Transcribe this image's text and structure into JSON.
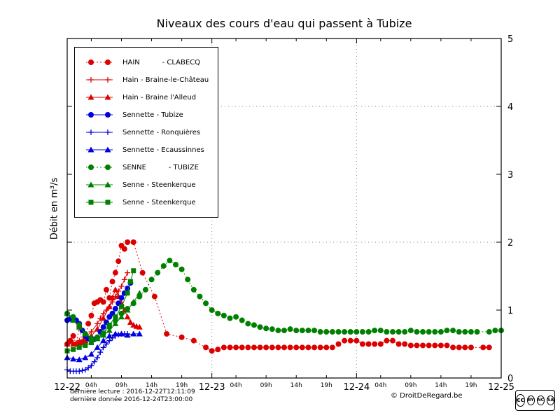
{
  "title": "Niveaux des cours d'eau qui passent à Tubize",
  "footer": {
    "last_read": "dernière lecture : 2016-12-22T12:11:09",
    "last_data": "dernière donnée  2016-12-24T23:00:00",
    "copyright": "© DroitDeRegard.be",
    "license": {
      "logo": "cc",
      "terms": [
        "BY",
        "NC",
        "SA"
      ]
    }
  },
  "chart_data": {
    "type": "line",
    "title": "Niveaux des cours d'eau qui passent à Tubize",
    "xlabel": "",
    "ylabel": "Débit en m³/s",
    "x_range_hours": [
      0,
      72
    ],
    "ylim": [
      0,
      5
    ],
    "grid": {
      "h_lines": [
        2,
        4
      ],
      "v_lines_t": [
        24,
        48
      ],
      "style": "dotted"
    },
    "legend_position": "upper left",
    "x_axis": {
      "day_ticks": [
        {
          "t": 0,
          "label": "12-22"
        },
        {
          "t": 24,
          "label": "12-23"
        },
        {
          "t": 48,
          "label": "12-24"
        },
        {
          "t": 72,
          "label": "12-25"
        }
      ],
      "hour_ticks": [
        {
          "t": 4,
          "label": "04h"
        },
        {
          "t": 9,
          "label": "09h"
        },
        {
          "t": 14,
          "label": "14h"
        },
        {
          "t": 19,
          "label": "19h"
        },
        {
          "t": 28,
          "label": "04h"
        },
        {
          "t": 33,
          "label": "09h"
        },
        {
          "t": 38,
          "label": "14h"
        },
        {
          "t": 43,
          "label": "19h"
        },
        {
          "t": 52,
          "label": "04h"
        },
        {
          "t": 57,
          "label": "09h"
        },
        {
          "t": 62,
          "label": "14h"
        },
        {
          "t": 67,
          "label": "19h"
        }
      ]
    },
    "y_axis": {
      "ticks": [
        0,
        1,
        2,
        3,
        4,
        5
      ],
      "side": "right"
    },
    "series": [
      {
        "id": "hain-clabecq",
        "name": "HAIN          - CLABECQ",
        "color": "#dd0000",
        "marker": "circle",
        "line": "dotted",
        "points": [
          [
            0,
            0.5
          ],
          [
            0.5,
            0.55
          ],
          [
            1,
            0.62
          ],
          [
            1.5,
            0.5
          ],
          [
            2,
            0.75
          ],
          [
            2.5,
            0.52
          ],
          [
            3,
            0.57
          ],
          [
            3.5,
            0.8
          ],
          [
            4,
            0.92
          ],
          [
            4.5,
            1.1
          ],
          [
            5,
            1.12
          ],
          [
            5.5,
            1.15
          ],
          [
            6,
            1.12
          ],
          [
            6.5,
            1.3
          ],
          [
            7,
            1.18
          ],
          [
            7.5,
            1.42
          ],
          [
            8,
            1.55
          ],
          [
            8.5,
            1.72
          ],
          [
            9,
            1.95
          ],
          [
            9.5,
            1.9
          ],
          [
            10,
            2.0
          ],
          [
            11,
            2.0
          ],
          [
            12.5,
            1.55
          ],
          [
            14.5,
            1.2
          ],
          [
            16.5,
            0.65
          ],
          [
            19,
            0.6
          ],
          [
            21,
            0.55
          ],
          [
            23,
            0.45
          ],
          [
            24,
            0.4
          ],
          [
            25,
            0.42
          ],
          [
            26,
            0.45
          ],
          [
            27,
            0.45
          ],
          [
            28,
            0.45
          ],
          [
            29,
            0.45
          ],
          [
            30,
            0.45
          ],
          [
            31,
            0.45
          ],
          [
            32,
            0.45
          ],
          [
            33,
            0.45
          ],
          [
            34,
            0.45
          ],
          [
            35,
            0.45
          ],
          [
            36,
            0.45
          ],
          [
            37,
            0.45
          ],
          [
            38,
            0.45
          ],
          [
            39,
            0.45
          ],
          [
            40,
            0.45
          ],
          [
            41,
            0.45
          ],
          [
            42,
            0.45
          ],
          [
            43,
            0.45
          ],
          [
            44,
            0.45
          ],
          [
            45,
            0.5
          ],
          [
            46,
            0.55
          ],
          [
            47,
            0.55
          ],
          [
            48,
            0.55
          ],
          [
            49,
            0.5
          ],
          [
            50,
            0.5
          ],
          [
            51,
            0.5
          ],
          [
            52,
            0.5
          ],
          [
            53,
            0.55
          ],
          [
            54,
            0.55
          ],
          [
            55,
            0.5
          ],
          [
            56,
            0.5
          ],
          [
            57,
            0.48
          ],
          [
            58,
            0.48
          ],
          [
            59,
            0.48
          ],
          [
            60,
            0.48
          ],
          [
            61,
            0.48
          ],
          [
            62,
            0.48
          ],
          [
            63,
            0.48
          ],
          [
            64,
            0.45
          ],
          [
            65,
            0.45
          ],
          [
            66,
            0.45
          ],
          [
            67,
            0.45
          ],
          [
            69,
            0.45
          ],
          [
            70,
            0.45
          ]
        ]
      },
      {
        "id": "hain-braine-le-chateau",
        "name": "Hain - Braine-le-Château",
        "color": "#dd0000",
        "marker": "plus",
        "line": "solid",
        "points": [
          [
            0,
            0.5
          ],
          [
            1,
            0.52
          ],
          [
            2,
            0.55
          ],
          [
            3,
            0.6
          ],
          [
            4,
            0.68
          ],
          [
            5,
            0.8
          ],
          [
            5.5,
            0.88
          ],
          [
            6,
            0.95
          ],
          [
            6.5,
            1.0
          ],
          [
            7,
            1.05
          ],
          [
            7.5,
            1.12
          ],
          [
            8,
            1.2
          ],
          [
            8.5,
            1.28
          ],
          [
            9,
            1.35
          ],
          [
            9.5,
            1.45
          ],
          [
            10,
            1.55
          ]
        ]
      },
      {
        "id": "hain-braine-l-alleud",
        "name": "Hain - Braine l'Alleud",
        "color": "#dd0000",
        "marker": "triangle",
        "line": "solid",
        "points": [
          [
            0,
            0.5
          ],
          [
            1,
            0.5
          ],
          [
            2,
            0.52
          ],
          [
            3,
            0.55
          ],
          [
            4,
            0.62
          ],
          [
            5,
            0.72
          ],
          [
            6,
            0.88
          ],
          [
            7,
            1.05
          ],
          [
            7.5,
            1.18
          ],
          [
            8,
            1.3
          ],
          [
            8.5,
            1.2
          ],
          [
            9,
            1.1
          ],
          [
            9.5,
            1.0
          ],
          [
            10,
            0.9
          ],
          [
            10.5,
            0.82
          ],
          [
            11,
            0.78
          ],
          [
            11.5,
            0.76
          ],
          [
            12,
            0.75
          ]
        ]
      },
      {
        "id": "sennette-tubize",
        "name": "Sennette - Tubize",
        "color": "#0000dd",
        "marker": "circle",
        "line": "solid",
        "points": [
          [
            0,
            0.85
          ],
          [
            0.5,
            0.87
          ],
          [
            1,
            0.88
          ],
          [
            1.5,
            0.85
          ],
          [
            2,
            0.8
          ],
          [
            2.5,
            0.7
          ],
          [
            3,
            0.62
          ],
          [
            3.5,
            0.58
          ],
          [
            4,
            0.55
          ],
          [
            4.5,
            0.57
          ],
          [
            5,
            0.6
          ],
          [
            5.5,
            0.68
          ],
          [
            6,
            0.75
          ],
          [
            6.5,
            0.82
          ],
          [
            7,
            0.9
          ],
          [
            7.5,
            0.95
          ],
          [
            8,
            1.02
          ],
          [
            8.5,
            1.1
          ],
          [
            9,
            1.18
          ],
          [
            9.5,
            1.25
          ],
          [
            10,
            1.32
          ],
          [
            10.5,
            1.4
          ]
        ]
      },
      {
        "id": "sennette-ronquieres",
        "name": "Sennette - Ronquières",
        "color": "#0000dd",
        "marker": "plus",
        "line": "solid",
        "points": [
          [
            0,
            0.12
          ],
          [
            0.5,
            0.1
          ],
          [
            1,
            0.1
          ],
          [
            1.5,
            0.1
          ],
          [
            2,
            0.1
          ],
          [
            2.5,
            0.11
          ],
          [
            3,
            0.12
          ],
          [
            3.5,
            0.15
          ],
          [
            4,
            0.18
          ],
          [
            4.5,
            0.24
          ],
          [
            5,
            0.3
          ],
          [
            5.5,
            0.38
          ],
          [
            6,
            0.45
          ],
          [
            6.5,
            0.5
          ],
          [
            7,
            0.55
          ],
          [
            7.5,
            0.59
          ],
          [
            8,
            0.62
          ],
          [
            8.5,
            0.64
          ],
          [
            9,
            0.65
          ],
          [
            9.5,
            0.65
          ],
          [
            10,
            0.65
          ]
        ]
      },
      {
        "id": "sennette-ecaussinnes",
        "name": "Sennette - Ecaussinnes",
        "color": "#0000dd",
        "marker": "triangle",
        "line": "solid",
        "points": [
          [
            0,
            0.3
          ],
          [
            1,
            0.28
          ],
          [
            2,
            0.27
          ],
          [
            3,
            0.3
          ],
          [
            4,
            0.35
          ],
          [
            5,
            0.45
          ],
          [
            6,
            0.55
          ],
          [
            7,
            0.62
          ],
          [
            8,
            0.65
          ],
          [
            9,
            0.65
          ],
          [
            10,
            0.63
          ],
          [
            11,
            0.65
          ],
          [
            12,
            0.65
          ]
        ]
      },
      {
        "id": "senne-tubize",
        "name": "SENNE          - TUBIZE",
        "color": "#008000",
        "marker": "circle",
        "line": "dotted",
        "points": [
          [
            0,
            0.95
          ],
          [
            1,
            0.9
          ],
          [
            2,
            0.78
          ],
          [
            3,
            0.65
          ],
          [
            4,
            0.57
          ],
          [
            5,
            0.6
          ],
          [
            6,
            0.66
          ],
          [
            7,
            0.75
          ],
          [
            8,
            0.85
          ],
          [
            9,
            0.95
          ],
          [
            10,
            1.02
          ],
          [
            11,
            1.1
          ],
          [
            12,
            1.2
          ],
          [
            13,
            1.3
          ],
          [
            14,
            1.45
          ],
          [
            15,
            1.55
          ],
          [
            16,
            1.65
          ],
          [
            17,
            1.73
          ],
          [
            18,
            1.67
          ],
          [
            19,
            1.6
          ],
          [
            20,
            1.45
          ],
          [
            21,
            1.3
          ],
          [
            22,
            1.2
          ],
          [
            23,
            1.1
          ],
          [
            24,
            1.0
          ],
          [
            25,
            0.95
          ],
          [
            26,
            0.92
          ],
          [
            27,
            0.88
          ],
          [
            28,
            0.9
          ],
          [
            29,
            0.85
          ],
          [
            30,
            0.8
          ],
          [
            31,
            0.78
          ],
          [
            32,
            0.75
          ],
          [
            33,
            0.73
          ],
          [
            34,
            0.72
          ],
          [
            35,
            0.7
          ],
          [
            36,
            0.7
          ],
          [
            37,
            0.72
          ],
          [
            38,
            0.7
          ],
          [
            39,
            0.7
          ],
          [
            40,
            0.7
          ],
          [
            41,
            0.7
          ],
          [
            42,
            0.68
          ],
          [
            43,
            0.68
          ],
          [
            44,
            0.68
          ],
          [
            45,
            0.68
          ],
          [
            46,
            0.68
          ],
          [
            47,
            0.68
          ],
          [
            48,
            0.68
          ],
          [
            49,
            0.68
          ],
          [
            50,
            0.68
          ],
          [
            51,
            0.7
          ],
          [
            52,
            0.7
          ],
          [
            53,
            0.68
          ],
          [
            54,
            0.68
          ],
          [
            55,
            0.68
          ],
          [
            56,
            0.68
          ],
          [
            57,
            0.7
          ],
          [
            58,
            0.68
          ],
          [
            59,
            0.68
          ],
          [
            60,
            0.68
          ],
          [
            61,
            0.68
          ],
          [
            62,
            0.68
          ],
          [
            63,
            0.7
          ],
          [
            64,
            0.7
          ],
          [
            65,
            0.68
          ],
          [
            66,
            0.68
          ],
          [
            67,
            0.68
          ],
          [
            68,
            0.68
          ],
          [
            70,
            0.68
          ],
          [
            71,
            0.7
          ],
          [
            72,
            0.7
          ]
        ]
      },
      {
        "id": "senne-steenkerque-1",
        "name": "Senne - Steenkerque",
        "color": "#008000",
        "marker": "triangle",
        "line": "solid",
        "points": [
          [
            0,
            0.95
          ],
          [
            1,
            0.85
          ],
          [
            2,
            0.75
          ],
          [
            3,
            0.65
          ],
          [
            4,
            0.6
          ],
          [
            5,
            0.58
          ],
          [
            6,
            0.63
          ],
          [
            7,
            0.7
          ],
          [
            8,
            0.8
          ],
          [
            9,
            0.9
          ],
          [
            10,
            1.0
          ],
          [
            11,
            1.12
          ],
          [
            12,
            1.25
          ]
        ]
      },
      {
        "id": "senne-steenkerque-2",
        "name": "Senne - Steenkerque",
        "color": "#008000",
        "marker": "square",
        "line": "solid",
        "points": [
          [
            0,
            0.4
          ],
          [
            1,
            0.42
          ],
          [
            2,
            0.45
          ],
          [
            3,
            0.48
          ],
          [
            4,
            0.52
          ],
          [
            5,
            0.58
          ],
          [
            6,
            0.66
          ],
          [
            7,
            0.78
          ],
          [
            8,
            0.9
          ],
          [
            9,
            1.05
          ],
          [
            10,
            1.25
          ],
          [
            10.5,
            1.42
          ],
          [
            11,
            1.58
          ]
        ]
      }
    ]
  }
}
